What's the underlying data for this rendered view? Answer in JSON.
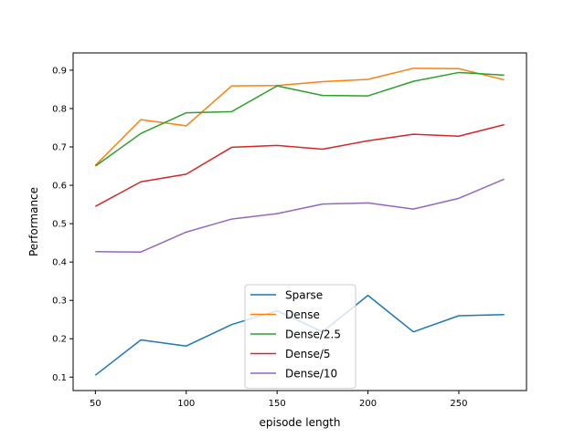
{
  "chart_data": {
    "type": "line",
    "xlabel": "episode length",
    "ylabel": "Performance",
    "xlim": [
      37.75,
      287.25
    ],
    "ylim": [
      0.065,
      0.945
    ],
    "xticks": [
      50,
      100,
      150,
      200,
      250
    ],
    "yticks": [
      0.1,
      0.2,
      0.3,
      0.4,
      0.5,
      0.6,
      0.7,
      0.8,
      0.9
    ],
    "grid": false,
    "legend_position": "lower-center",
    "x": [
      50,
      75,
      100,
      125,
      150,
      175,
      200,
      225,
      250,
      275
    ],
    "series": [
      {
        "name": "Sparse",
        "color": "#1f77b4",
        "values": [
          0.105,
          0.197,
          0.181,
          0.237,
          0.273,
          0.218,
          0.313,
          0.218,
          0.26,
          0.263
        ]
      },
      {
        "name": "Dense",
        "color": "#ff7f0e",
        "values": [
          0.652,
          0.771,
          0.755,
          0.859,
          0.86,
          0.87,
          0.876,
          0.905,
          0.904,
          0.875
        ]
      },
      {
        "name": "Dense/2.5",
        "color": "#2ca02c",
        "values": [
          0.65,
          0.735,
          0.789,
          0.792,
          0.859,
          0.834,
          0.833,
          0.871,
          0.894,
          0.887
        ]
      },
      {
        "name": "Dense/5",
        "color": "#d62728",
        "values": [
          0.545,
          0.609,
          0.629,
          0.699,
          0.704,
          0.694,
          0.716,
          0.733,
          0.728,
          0.758
        ]
      },
      {
        "name": "Dense/10",
        "color": "#9467bd",
        "values": [
          0.427,
          0.426,
          0.478,
          0.512,
          0.526,
          0.551,
          0.554,
          0.538,
          0.566,
          0.616
        ]
      }
    ]
  }
}
